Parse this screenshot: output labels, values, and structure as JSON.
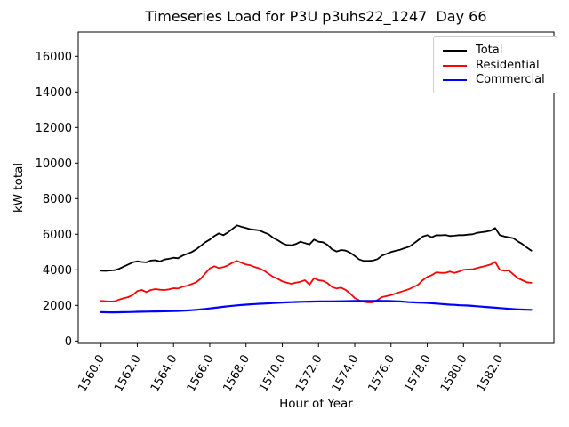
{
  "title": "Timeseries Load for P3U p3uhs22_1247  Day 66",
  "chart_data": {
    "type": "line",
    "title": "Timeseries Load for P3U p3uhs22_1247  Day 66",
    "xlabel": "Hour of Year",
    "ylabel": "kW total",
    "xlim": [
      1558.74,
      1584.99
    ],
    "ylim": [
      -135,
      17365
    ],
    "grid": false,
    "legend_position": "upper right",
    "x_ticks": [
      1560,
      1562,
      1564,
      1566,
      1568,
      1570,
      1572,
      1574,
      1576,
      1578,
      1580,
      1582
    ],
    "x_tick_labels": [
      "1560.0",
      "1562.0",
      "1564.0",
      "1566.0",
      "1568.0",
      "1570.0",
      "1572.0",
      "1574.0",
      "1576.0",
      "1578.0",
      "1580.0",
      "1582.0"
    ],
    "x_tick_rotation_deg": 60,
    "y_ticks": [
      0,
      2000,
      4000,
      6000,
      8000,
      10000,
      12000,
      14000,
      16000
    ],
    "y_tick_labels": [
      "0",
      "2000",
      "4000",
      "6000",
      "8000",
      "10000",
      "12000",
      "14000",
      "16000"
    ],
    "x": [
      1560,
      1560.25,
      1560.5,
      1560.75,
      1561,
      1561.25,
      1561.5,
      1561.75,
      1562,
      1562.25,
      1562.5,
      1562.75,
      1563,
      1563.25,
      1563.5,
      1563.75,
      1564,
      1564.25,
      1564.5,
      1564.75,
      1565,
      1565.25,
      1565.5,
      1565.75,
      1566,
      1566.25,
      1566.5,
      1566.75,
      1567,
      1567.25,
      1567.5,
      1567.75,
      1568,
      1568.25,
      1568.5,
      1568.75,
      1569,
      1569.25,
      1569.5,
      1569.75,
      1570,
      1570.25,
      1570.5,
      1570.75,
      1571,
      1571.25,
      1571.5,
      1571.75,
      1572,
      1572.25,
      1572.5,
      1572.75,
      1573,
      1573.25,
      1573.5,
      1573.75,
      1574,
      1574.25,
      1574.5,
      1574.75,
      1575,
      1575.25,
      1575.5,
      1575.75,
      1576,
      1576.25,
      1576.5,
      1576.75,
      1577,
      1577.25,
      1577.5,
      1577.75,
      1578,
      1578.25,
      1578.5,
      1578.75,
      1579,
      1579.25,
      1579.5,
      1579.75,
      1580,
      1580.25,
      1580.5,
      1580.75,
      1581,
      1581.25,
      1581.5,
      1581.75,
      1582,
      1582.25,
      1582.5,
      1582.75,
      1583,
      1583.25,
      1583.5,
      1583.75
    ],
    "series": [
      {
        "name": "Total",
        "color": "#000000",
        "line_width": 1.8,
        "values": [
          3950,
          3940,
          3960,
          3980,
          4060,
          4180,
          4300,
          4420,
          4480,
          4440,
          4420,
          4520,
          4540,
          4470,
          4580,
          4620,
          4680,
          4650,
          4800,
          4900,
          5000,
          5150,
          5350,
          5550,
          5700,
          5900,
          6050,
          5950,
          6100,
          6300,
          6500,
          6420,
          6350,
          6280,
          6250,
          6215,
          6100,
          6000,
          5800,
          5665,
          5500,
          5400,
          5380,
          5450,
          5580,
          5500,
          5430,
          5700,
          5580,
          5550,
          5400,
          5150,
          5030,
          5115,
          5080,
          4960,
          4780,
          4580,
          4500,
          4500,
          4520,
          4600,
          4800,
          4900,
          5000,
          5070,
          5130,
          5220,
          5300,
          5480,
          5665,
          5870,
          5950,
          5830,
          5950,
          5940,
          5960,
          5900,
          5920,
          5950,
          5950,
          5980,
          6000,
          6080,
          6115,
          6150,
          6200,
          6350,
          5950,
          5880,
          5830,
          5780,
          5600,
          5450,
          5250,
          5080
        ]
      },
      {
        "name": "Residential",
        "color": "#ff0000",
        "line_width": 1.8,
        "values": [
          2250,
          2230,
          2220,
          2230,
          2330,
          2400,
          2465,
          2580,
          2800,
          2865,
          2750,
          2865,
          2915,
          2880,
          2865,
          2900,
          2965,
          2950,
          3050,
          3100,
          3200,
          3300,
          3500,
          3800,
          4080,
          4200,
          4100,
          4150,
          4250,
          4400,
          4500,
          4400,
          4300,
          4250,
          4150,
          4080,
          3950,
          3780,
          3600,
          3500,
          3350,
          3280,
          3215,
          3280,
          3330,
          3415,
          3165,
          3530,
          3415,
          3380,
          3250,
          3030,
          2950,
          3000,
          2865,
          2665,
          2415,
          2280,
          2200,
          2165,
          2165,
          2300,
          2465,
          2520,
          2580,
          2665,
          2750,
          2830,
          2915,
          3040,
          3165,
          3415,
          3600,
          3700,
          3860,
          3830,
          3830,
          3900,
          3830,
          3900,
          4000,
          4020,
          4030,
          4100,
          4165,
          4230,
          4300,
          4450,
          4000,
          3950,
          3965,
          3750,
          3530,
          3415,
          3300,
          3270
        ]
      },
      {
        "name": "Commercial",
        "color": "#0000ff",
        "line_width": 2.2,
        "values": [
          1620,
          1615,
          1610,
          1610,
          1615,
          1620,
          1625,
          1630,
          1640,
          1645,
          1650,
          1655,
          1660,
          1665,
          1670,
          1675,
          1680,
          1690,
          1700,
          1715,
          1730,
          1750,
          1775,
          1800,
          1830,
          1860,
          1890,
          1920,
          1950,
          1975,
          2000,
          2020,
          2040,
          2060,
          2075,
          2090,
          2100,
          2115,
          2130,
          2145,
          2160,
          2170,
          2180,
          2190,
          2200,
          2205,
          2210,
          2215,
          2220,
          2220,
          2225,
          2225,
          2230,
          2230,
          2235,
          2240,
          2245,
          2250,
          2250,
          2250,
          2250,
          2255,
          2250,
          2245,
          2240,
          2230,
          2220,
          2200,
          2180,
          2170,
          2160,
          2150,
          2140,
          2120,
          2100,
          2080,
          2060,
          2040,
          2030,
          2010,
          2000,
          1990,
          1970,
          1950,
          1930,
          1910,
          1890,
          1870,
          1850,
          1830,
          1810,
          1790,
          1775,
          1765,
          1755,
          1750
        ]
      }
    ]
  }
}
